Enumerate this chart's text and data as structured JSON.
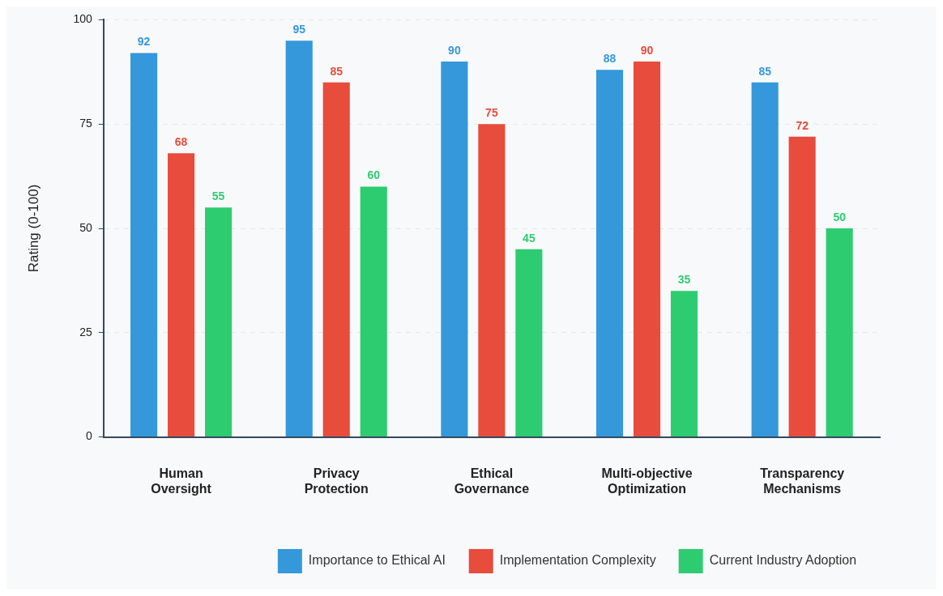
{
  "chart_data": {
    "type": "bar",
    "ylabel": "Rating (0-100)",
    "categories": [
      "Human Oversight",
      "Privacy Protection",
      "Ethical Governance",
      "Multi-objective Optimization",
      "Transparency Mechanisms"
    ],
    "series": [
      {
        "name": "Importance to Ethical AI",
        "color": "#3498db",
        "values": [
          92,
          95,
          90,
          88,
          85
        ]
      },
      {
        "name": "Implementation Complexity",
        "color": "#e74c3c",
        "values": [
          68,
          85,
          75,
          90,
          72
        ]
      },
      {
        "name": "Current Industry Adoption",
        "color": "#2ecc71",
        "values": [
          55,
          60,
          45,
          35,
          50
        ]
      }
    ],
    "ylim": [
      0,
      100
    ],
    "yticks": [
      0,
      25,
      50,
      75,
      100
    ],
    "grid": "y",
    "legend": "bottom",
    "data_labels": true
  }
}
